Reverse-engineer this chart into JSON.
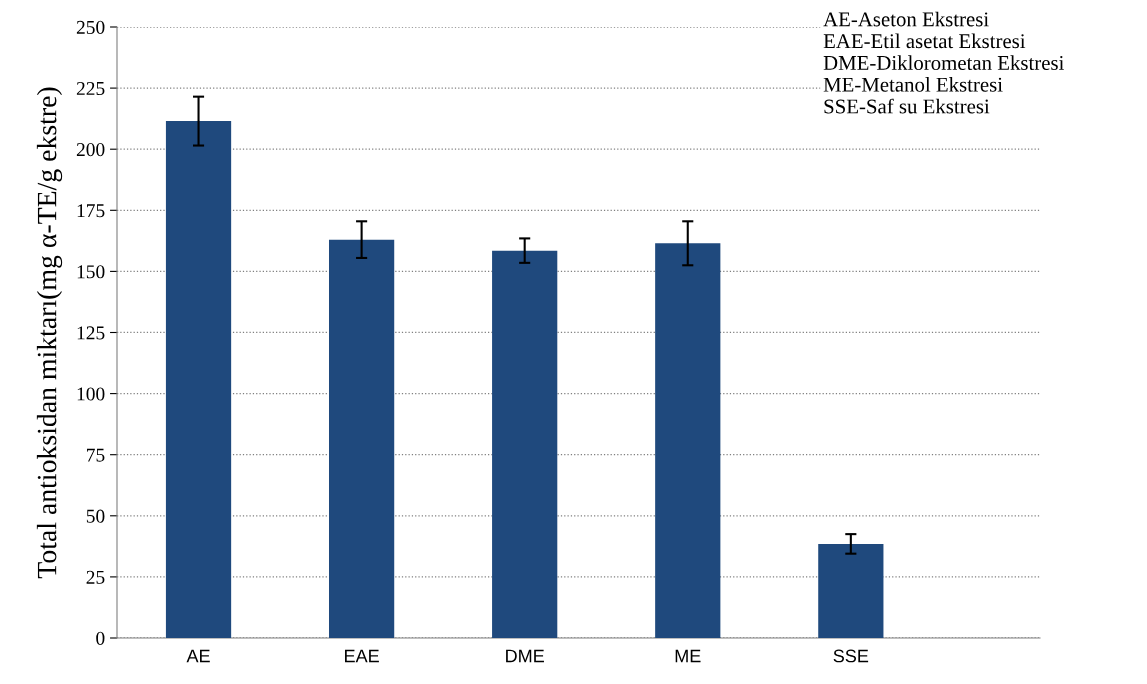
{
  "chart_data": {
    "type": "bar",
    "ylabel": "Total antioksidan miktarı(mg α-TE/g ekstre)",
    "categories": [
      "AE",
      "EAE",
      "DME",
      "ME",
      "SSE"
    ],
    "values": [
      211.5,
      163,
      158.5,
      161.5,
      38.5
    ],
    "errors": [
      10,
      7.5,
      5,
      9,
      4
    ],
    "color": "#1f497d",
    "ylim": [
      0,
      250
    ],
    "yticks": [
      0,
      25,
      50,
      75,
      100,
      125,
      150,
      175,
      200,
      225,
      250
    ],
    "grid": "y",
    "annotations": [
      "AE-Aseton Ekstresi",
      "EAE-Etil asetat Ekstresi",
      "DME-Diklorometan Ekstresi",
      "ME-Metanol Ekstresi",
      "SSE-Saf su Ekstresi"
    ]
  }
}
